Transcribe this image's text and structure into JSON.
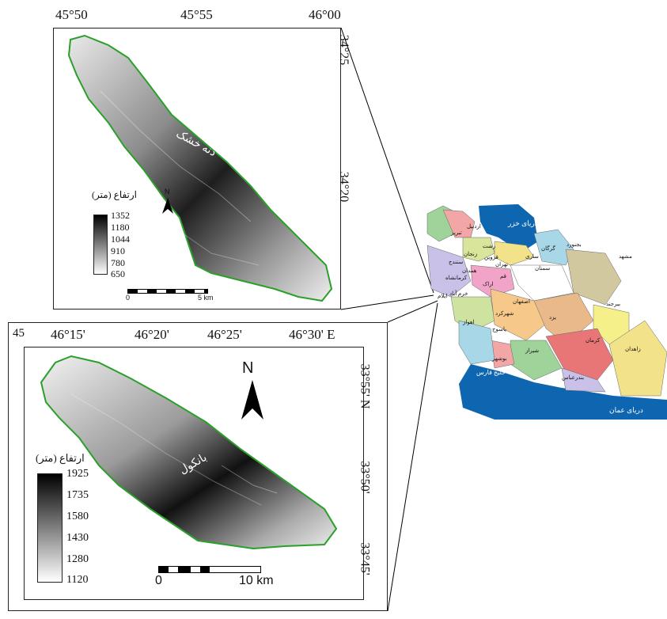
{
  "top_map": {
    "longitude_labels": [
      "45°50",
      "45°55",
      "46°00"
    ],
    "latitude_labels": [
      "34°25",
      "34°20"
    ],
    "region_label": "دنه خشک",
    "legend_title": "ارتفاع (متر)",
    "legend_values": [
      "1352",
      "1180",
      "1044",
      "910",
      "780",
      "650"
    ],
    "north_label": "N",
    "scale_labels": [
      "0",
      "5 km"
    ]
  },
  "bottom_map": {
    "longitude_labels": [
      "45",
      "46°15'",
      "46°20'",
      "46°25'",
      "46°30' E"
    ],
    "latitude_labels": [
      "33°55' N",
      "33°50'",
      "33°45'"
    ],
    "region_label": "بانکول",
    "legend_title": "ارتفاع (متر)",
    "legend_values": [
      "1925",
      "1735",
      "1580",
      "1430",
      "1280",
      "1120"
    ],
    "north_label": "N",
    "scale_labels": [
      "0",
      "10 km"
    ]
  },
  "iran_map": {
    "labels": [
      {
        "text": "دریای خزر"
      },
      {
        "text": "اردبیل"
      },
      {
        "text": "تبریز"
      },
      {
        "text": "بجنورد"
      },
      {
        "text": "گرگان"
      },
      {
        "text": "رشت"
      },
      {
        "text": "ساری"
      },
      {
        "text": "مشهد"
      },
      {
        "text": "زنجان"
      },
      {
        "text": "قزوین"
      },
      {
        "text": "تهران"
      },
      {
        "text": "سنندج"
      },
      {
        "text": "سمنان"
      },
      {
        "text": "همدان"
      },
      {
        "text": "قم"
      },
      {
        "text": "کرمانشاه"
      },
      {
        "text": "اراک"
      },
      {
        "text": "خرم آباد"
      },
      {
        "text": "ایلام"
      },
      {
        "text": "اصفهان"
      },
      {
        "text": "بیرجند"
      },
      {
        "text": "شهرکرد"
      },
      {
        "text": "اهواز"
      },
      {
        "text": "یزد"
      },
      {
        "text": "یاسوج"
      },
      {
        "text": "زاهدان"
      },
      {
        "text": "کرمان"
      },
      {
        "text": "شیراز"
      },
      {
        "text": "بوشهر"
      },
      {
        "text": "خلیج فارس"
      },
      {
        "text": "بندرعباس"
      },
      {
        "text": "دریای عمان"
      }
    ],
    "colors": {
      "sea": "#0f66b0",
      "provinces": [
        "#f2e28a",
        "#9fd39a",
        "#f3a6a6",
        "#c9c1e8",
        "#f6c98b",
        "#a8d8e8",
        "#d8e59a",
        "#f1a3c8",
        "#e9b98a",
        "#cfe3a0",
        "#e87676",
        "#f5f08a",
        "#d2c8a0",
        "#ffffff"
      ]
    }
  }
}
